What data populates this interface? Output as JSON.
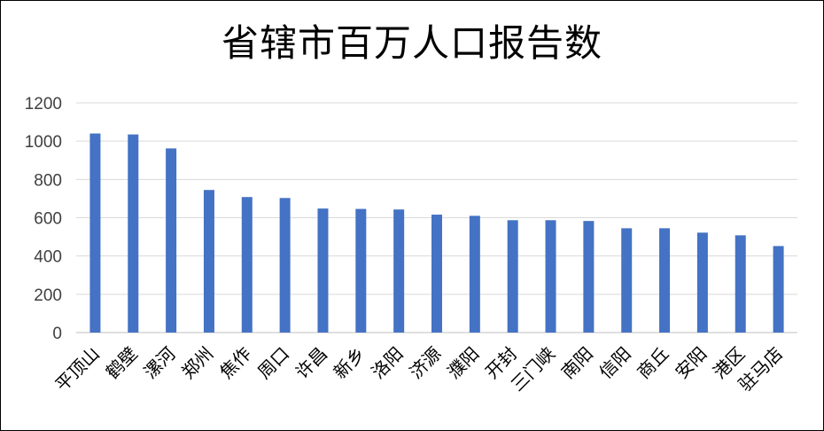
{
  "chart_data": {
    "type": "bar",
    "title": "省辖市百万人口报告数",
    "xlabel": "",
    "ylabel": "",
    "ylim": [
      0,
      1200
    ],
    "yticks": [
      0,
      200,
      400,
      600,
      800,
      1000,
      1200
    ],
    "grid": true,
    "legend": "none",
    "bar_color": "#4472C4",
    "categories": [
      "平顶山",
      "鹤壁",
      "漯河",
      "郑州",
      "焦作",
      "周口",
      "许昌",
      "新乡",
      "洛阳",
      "济源",
      "濮阳",
      "开封",
      "三门峡",
      "南阳",
      "信阳",
      "商丘",
      "安阳",
      "港区",
      "驻马店"
    ],
    "values": [
      1040,
      1035,
      962,
      745,
      708,
      703,
      648,
      646,
      643,
      616,
      610,
      587,
      587,
      583,
      545,
      545,
      522,
      508,
      452
    ]
  }
}
